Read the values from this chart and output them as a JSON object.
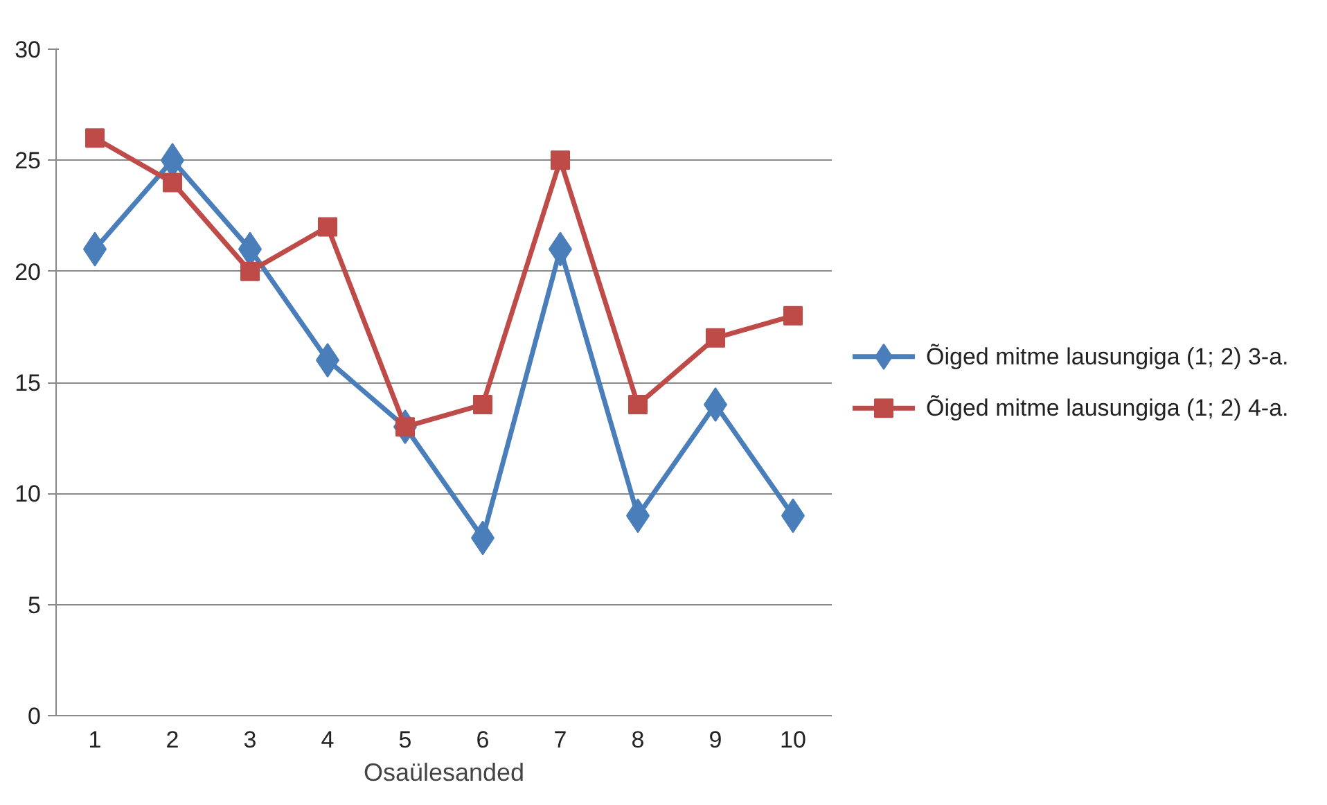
{
  "chart_data": {
    "type": "line",
    "xlabel": "Osaülesanded",
    "categories": [
      "1",
      "2",
      "3",
      "4",
      "5",
      "6",
      "7",
      "8",
      "9",
      "10"
    ],
    "series": [
      {
        "name": "Õiged mitme lausungiga  (1; 2) 3-a.",
        "color": "#4a7ebb",
        "marker": "diamond",
        "values": [
          21,
          25,
          21,
          16,
          13,
          8,
          21,
          9,
          14,
          9
        ]
      },
      {
        "name": "Õiged mitme lausungiga (1; 2) 4-a.",
        "color": "#be4b48",
        "marker": "square",
        "values": [
          26,
          24,
          20,
          22,
          13,
          14,
          25,
          14,
          17,
          18
        ]
      }
    ],
    "ylim": [
      0,
      30
    ],
    "yticks": [
      0,
      5,
      10,
      15,
      20,
      25,
      30
    ],
    "grid": "y",
    "legend": "right",
    "line_style": "solid"
  }
}
